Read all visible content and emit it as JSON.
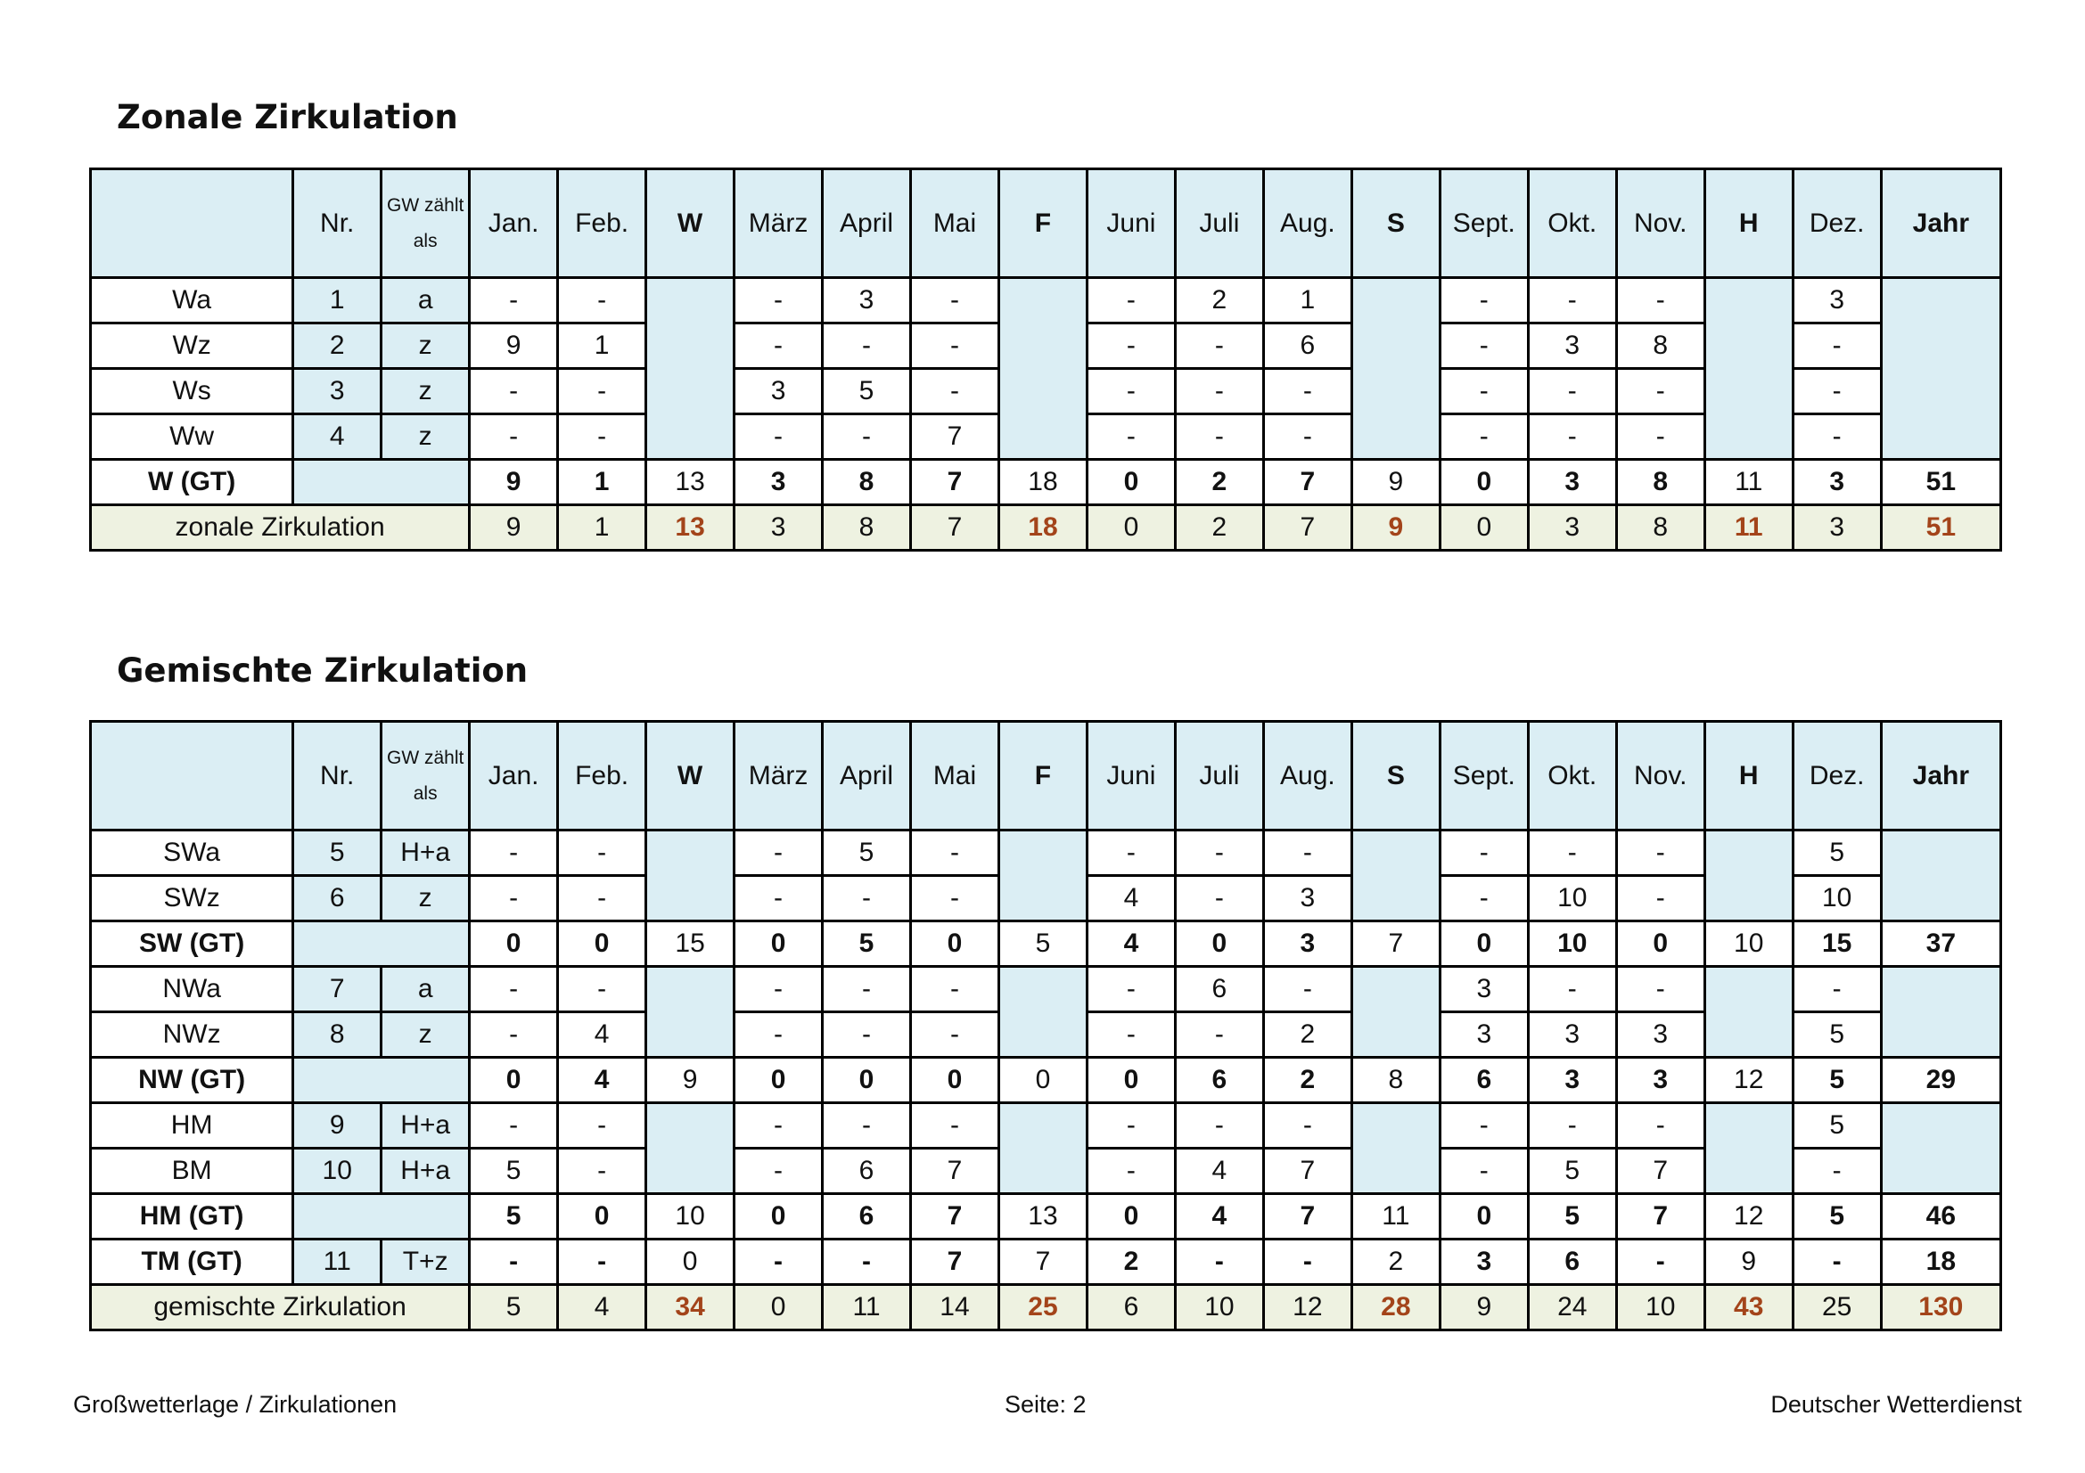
{
  "accent_colors": {
    "header_blue": "#dbeef4",
    "total_row": "#eef2e1",
    "season_total_text": "#a3441a"
  },
  "headers": [
    "",
    "Nr.",
    "GW zählt als",
    "Jan.",
    "Feb.",
    "W",
    "März",
    "April",
    "Mai",
    "F",
    "Juni",
    "Juli",
    "Aug.",
    "S",
    "Sept.",
    "Okt.",
    "Nov.",
    "H",
    "Dez.",
    "Jahr"
  ],
  "zonal": {
    "title": "Zonale Zirkulation",
    "rows": [
      {
        "type": "gw",
        "name": "Wa",
        "nr": "1",
        "gw": "a",
        "months": [
          "-",
          "-",
          "-",
          "3",
          "-",
          "-",
          "2",
          "1",
          "-",
          "-",
          "-",
          "3"
        ]
      },
      {
        "type": "gw",
        "name": "Wz",
        "nr": "2",
        "gw": "z",
        "months": [
          "9",
          "1",
          "-",
          "-",
          "-",
          "-",
          "-",
          "6",
          "-",
          "3",
          "8",
          "-"
        ]
      },
      {
        "type": "gw",
        "name": "Ws",
        "nr": "3",
        "gw": "z",
        "months": [
          "-",
          "-",
          "3",
          "5",
          "-",
          "-",
          "-",
          "-",
          "-",
          "-",
          "-",
          "-"
        ]
      },
      {
        "type": "gw",
        "name": "Ww",
        "nr": "4",
        "gw": "z",
        "months": [
          "-",
          "-",
          "-",
          "-",
          "7",
          "-",
          "-",
          "-",
          "-",
          "-",
          "-",
          "-"
        ]
      },
      {
        "type": "gt",
        "name": "W (GT)",
        "values": [
          "9",
          "1",
          "13",
          "3",
          "8",
          "7",
          "18",
          "0",
          "2",
          "7",
          "9",
          "0",
          "3",
          "8",
          "11",
          "3",
          "51"
        ]
      }
    ],
    "total": {
      "label": "zonale Zirkulation",
      "values": [
        "9",
        "1",
        "13",
        "3",
        "8",
        "7",
        "18",
        "0",
        "2",
        "7",
        "9",
        "0",
        "3",
        "8",
        "11",
        "3",
        "51"
      ]
    }
  },
  "mixed": {
    "title": "Gemischte Zirkulation",
    "rows": [
      {
        "type": "gw",
        "group_start": true,
        "group_size": 2,
        "name": "SWa",
        "nr": "5",
        "gw": "H+a",
        "months": [
          "-",
          "-",
          "-",
          "5",
          "-",
          "-",
          "-",
          "-",
          "-",
          "-",
          "-",
          "5"
        ]
      },
      {
        "type": "gw",
        "name": "SWz",
        "nr": "6",
        "gw": "z",
        "months": [
          "-",
          "-",
          "-",
          "-",
          "-",
          "4",
          "-",
          "3",
          "-",
          "10",
          "-",
          "10"
        ]
      },
      {
        "type": "gt",
        "name": "SW (GT)",
        "values": [
          "0",
          "0",
          "15",
          "0",
          "5",
          "0",
          "5",
          "4",
          "0",
          "3",
          "7",
          "0",
          "10",
          "0",
          "10",
          "15",
          "37"
        ]
      },
      {
        "type": "gw",
        "group_start": true,
        "group_size": 2,
        "name": "NWa",
        "nr": "7",
        "gw": "a",
        "months": [
          "-",
          "-",
          "-",
          "-",
          "-",
          "-",
          "6",
          "-",
          "3",
          "-",
          "-",
          "-"
        ]
      },
      {
        "type": "gw",
        "name": "NWz",
        "nr": "8",
        "gw": "z",
        "months": [
          "-",
          "4",
          "-",
          "-",
          "-",
          "-",
          "-",
          "2",
          "3",
          "3",
          "3",
          "5"
        ]
      },
      {
        "type": "gt",
        "name": "NW (GT)",
        "values": [
          "0",
          "4",
          "9",
          "0",
          "0",
          "0",
          "0",
          "0",
          "6",
          "2",
          "8",
          "6",
          "3",
          "3",
          "12",
          "5",
          "29"
        ]
      },
      {
        "type": "gw",
        "group_start": true,
        "group_size": 2,
        "name": "HM",
        "nr": "9",
        "gw": "H+a",
        "months": [
          "-",
          "-",
          "-",
          "-",
          "-",
          "-",
          "-",
          "-",
          "-",
          "-",
          "-",
          "5"
        ]
      },
      {
        "type": "gw",
        "name": "BM",
        "nr": "10",
        "gw": "H+a",
        "months": [
          "5",
          "-",
          "-",
          "6",
          "7",
          "-",
          "4",
          "7",
          "-",
          "5",
          "7",
          "-"
        ]
      },
      {
        "type": "gt",
        "name": "HM (GT)",
        "values": [
          "5",
          "0",
          "10",
          "0",
          "6",
          "7",
          "13",
          "0",
          "4",
          "7",
          "11",
          "0",
          "5",
          "7",
          "12",
          "5",
          "46"
        ]
      },
      {
        "type": "gtnr",
        "name": "TM (GT)",
        "nr": "11",
        "gw": "T+z",
        "values": [
          "-",
          "-",
          "0",
          "-",
          "-",
          "7",
          "7",
          "2",
          "-",
          "-",
          "2",
          "3",
          "6",
          "-",
          "9",
          "-",
          "18"
        ]
      }
    ],
    "total": {
      "label": "gemischte Zirkulation",
      "values": [
        "5",
        "4",
        "34",
        "0",
        "11",
        "14",
        "25",
        "6",
        "10",
        "12",
        "28",
        "9",
        "24",
        "10",
        "43",
        "25",
        "130"
      ]
    }
  },
  "footer": {
    "left": "Großwetterlage / Zirkulationen",
    "center": "Seite: 2",
    "right": "Deutscher Wetterdienst"
  }
}
